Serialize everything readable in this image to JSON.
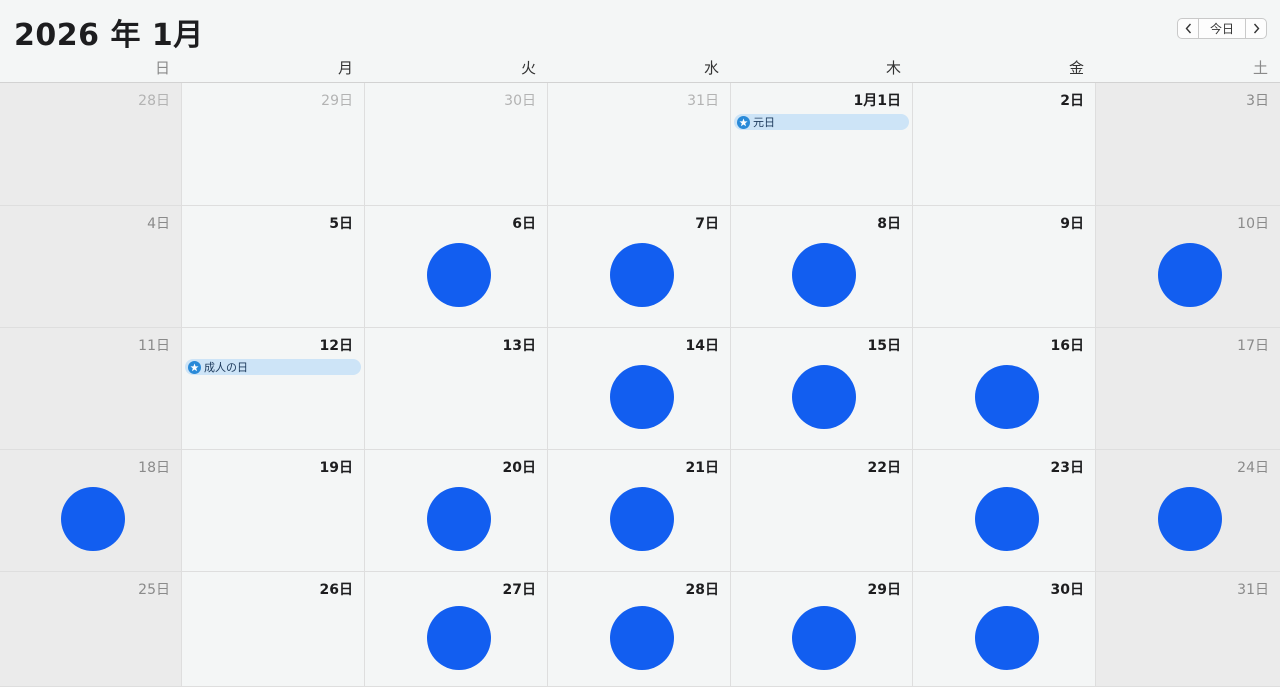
{
  "header": {
    "title": "2026 年 1月",
    "today_label": "今日"
  },
  "weekdays": [
    "日",
    "月",
    "火",
    "水",
    "木",
    "金",
    "土"
  ],
  "colors": {
    "event_background": "#cde4f7",
    "holiday_icon": "#2a8ad8",
    "dot": "#125ef0"
  },
  "weeks": [
    [
      {
        "label": "28日",
        "other": true
      },
      {
        "label": "29日",
        "other": true
      },
      {
        "label": "30日",
        "other": true
      },
      {
        "label": "31日",
        "other": true
      },
      {
        "label": "1月1日",
        "event": "元日"
      },
      {
        "label": "2日"
      },
      {
        "label": "3日"
      }
    ],
    [
      {
        "label": "4日"
      },
      {
        "label": "5日"
      },
      {
        "label": "6日",
        "dot": true
      },
      {
        "label": "7日",
        "dot": true
      },
      {
        "label": "8日",
        "dot": true
      },
      {
        "label": "9日"
      },
      {
        "label": "10日",
        "dot": true
      }
    ],
    [
      {
        "label": "11日"
      },
      {
        "label": "12日",
        "event": "成人の日"
      },
      {
        "label": "13日"
      },
      {
        "label": "14日",
        "dot": true
      },
      {
        "label": "15日",
        "dot": true
      },
      {
        "label": "16日",
        "dot": true
      },
      {
        "label": "17日"
      }
    ],
    [
      {
        "label": "18日",
        "dot": true
      },
      {
        "label": "19日"
      },
      {
        "label": "20日",
        "dot": true
      },
      {
        "label": "21日",
        "dot": true
      },
      {
        "label": "22日"
      },
      {
        "label": "23日",
        "dot": true
      },
      {
        "label": "24日",
        "dot": true
      }
    ],
    [
      {
        "label": "25日"
      },
      {
        "label": "26日"
      },
      {
        "label": "27日",
        "dot": true
      },
      {
        "label": "28日",
        "dot": true
      },
      {
        "label": "29日",
        "dot": true
      },
      {
        "label": "30日",
        "dot": true
      },
      {
        "label": "31日"
      }
    ]
  ]
}
